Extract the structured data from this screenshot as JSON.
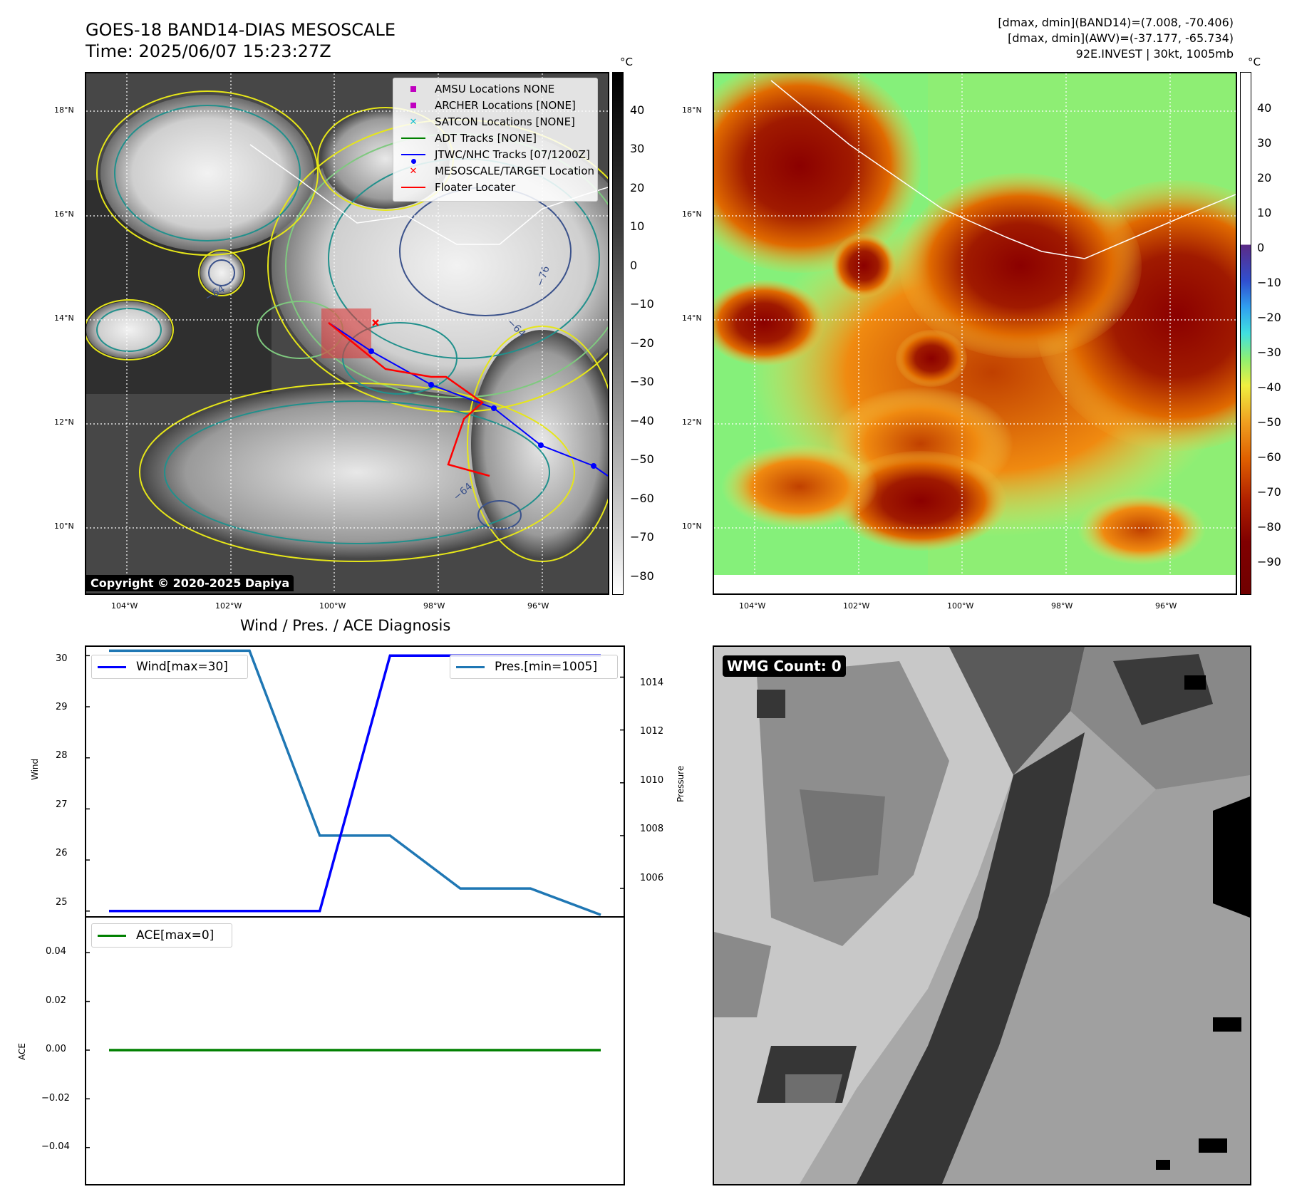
{
  "header": {
    "title_line1": "GOES-18 BAND14-DIAS MESOSCALE",
    "title_line2": "Time: 2025/06/07 15:23:27Z",
    "info_line1": "[dmax, dmin](BAND14)=(7.008, -70.406)",
    "info_line2": "[dmax, dmin](AWV)=(-37.177, -65.734)",
    "info_line3": "92E.INVEST | 30kt, 1005mb"
  },
  "map_panel": {
    "lat_labels": [
      "18°N",
      "16°N",
      "14°N",
      "12°N",
      "10°N"
    ],
    "lon_labels": [
      "104°W",
      "102°W",
      "100°W",
      "98°W",
      "96°W"
    ],
    "colorbar_unit": "°C",
    "colorbar_ticks_left": [
      "40",
      "30",
      "20",
      "10",
      "0",
      "−10",
      "−20",
      "−30",
      "−40",
      "−50",
      "−60",
      "−70",
      "−80"
    ],
    "colorbar_ticks_right": [
      "40",
      "30",
      "20",
      "10",
      "0",
      "−10",
      "−20",
      "−30",
      "−40",
      "−50",
      "−60",
      "−70",
      "−80",
      "−90"
    ],
    "contour_labels": [
      "−76",
      "−64",
      "−64",
      "−64"
    ],
    "copyright": "Copyright © 2020-2025 Dapiya",
    "legend": [
      {
        "label": "AMSU Locations NONE",
        "symbol": "square",
        "color": "#c000c0"
      },
      {
        "label": "ARCHER Locations [NONE]",
        "symbol": "square",
        "color": "#c000c0"
      },
      {
        "label": "SATCON Locations [NONE]",
        "symbol": "x",
        "color": "#17becf"
      },
      {
        "label": "ADT Tracks [NONE]",
        "symbol": "line",
        "color": "#008000"
      },
      {
        "label": "JTWC/NHC Tracks [07/1200Z]",
        "symbol": "line-dot",
        "color": "#0000ff"
      },
      {
        "label": "MESOSCALE/TARGET Location",
        "symbol": "x",
        "color": "#ff0000"
      },
      {
        "label": "Floater Locater",
        "symbol": "line",
        "color": "#ff0000"
      }
    ]
  },
  "diag_panel": {
    "title": "Wind / Pres. / ACE Diagnosis",
    "wind_ylabel": "Wind",
    "pres_ylabel": "Pressure",
    "ace_ylabel": "ACE",
    "wind_ticks": [
      "30",
      "29",
      "28",
      "27",
      "26",
      "25"
    ],
    "pres_ticks": [
      "1014",
      "1012",
      "1010",
      "1008",
      "1006"
    ],
    "ace_ticks": [
      "0.04",
      "0.02",
      "0.00",
      "−0.02",
      "−0.04"
    ],
    "legend_wind": "Wind[max=30]",
    "legend_pres": "Pres.[min=1005]",
    "legend_ace": "ACE[max=0]"
  },
  "wmg_panel": {
    "badge": "WMG Count: 0"
  },
  "chart_data": [
    {
      "type": "line",
      "title": "Wind / Pres. / ACE Diagnosis",
      "x": [
        0,
        1,
        2,
        3,
        4,
        5,
        6,
        7
      ],
      "series": [
        {
          "name": "Wind[max=30]",
          "axis": "left",
          "color": "#0000ff",
          "values": [
            25,
            25,
            25,
            25,
            30,
            30,
            30,
            30
          ]
        },
        {
          "name": "Pres.[min=1005]",
          "axis": "right",
          "color": "#1f77b4",
          "values": [
            1015,
            1015,
            1015,
            1008,
            1008,
            1006,
            1006,
            1005
          ]
        }
      ],
      "ylabel": "Wind",
      "ylim": [
        24.9,
        30.2
      ],
      "y2label": "Pressure",
      "y2lim": [
        1004.95,
        1015.2
      ]
    },
    {
      "type": "line",
      "x": [
        0,
        1,
        2,
        3,
        4,
        5,
        6,
        7
      ],
      "series": [
        {
          "name": "ACE[max=0]",
          "color": "#008000",
          "values": [
            0,
            0,
            0,
            0,
            0,
            0,
            0,
            0
          ]
        }
      ],
      "ylabel": "ACE",
      "ylim": [
        -0.055,
        0.055
      ]
    }
  ]
}
